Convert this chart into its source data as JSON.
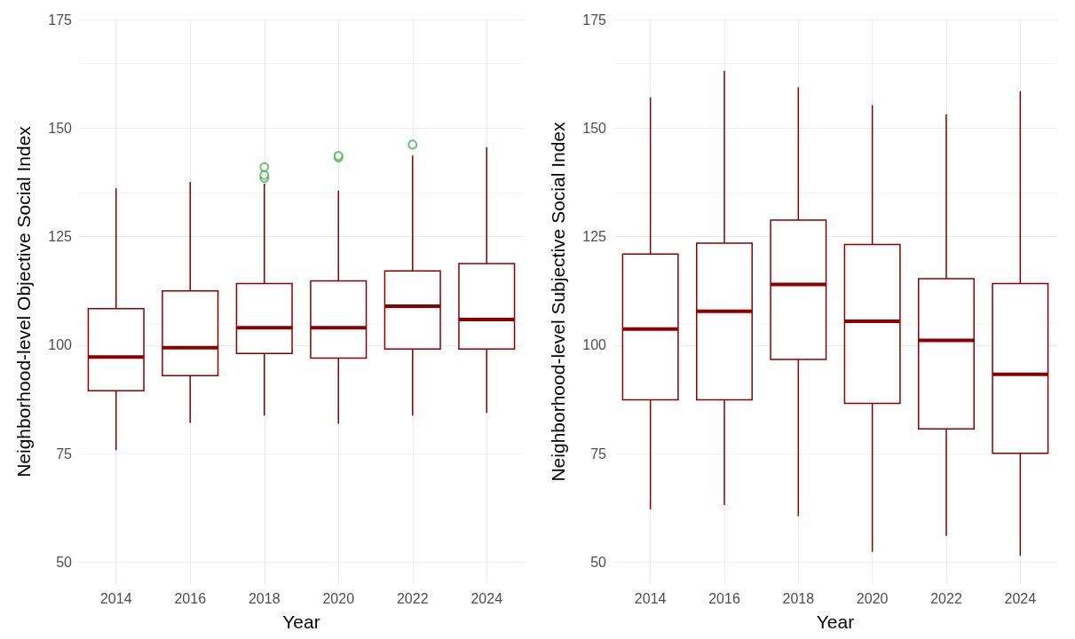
{
  "chart_data": [
    {
      "type": "box",
      "xlabel": "Year",
      "ylabel": "Neighborhood-level Objective Social Index",
      "categories": [
        "2014",
        "2016",
        "2018",
        "2020",
        "2022",
        "2024"
      ],
      "ylim": [
        45,
        175
      ],
      "yticks": [
        50,
        75,
        100,
        125,
        150,
        175
      ],
      "grid": true,
      "series": [
        {
          "color": "#8b0000",
          "boxes": [
            {
              "low": 75.8,
              "q1": 89.5,
              "median": 97.3,
              "q3": 108.4,
              "high": 136.1
            },
            {
              "low": 82.1,
              "q1": 93.0,
              "median": 99.4,
              "q3": 112.5,
              "high": 137.6
            },
            {
              "low": 83.8,
              "q1": 98.1,
              "median": 104.0,
              "q3": 114.2,
              "high": 137.2,
              "outliers": [
                138.5,
                139.2,
                141.0
              ]
            },
            {
              "low": 81.9,
              "q1": 97.0,
              "median": 104.0,
              "q3": 114.8,
              "high": 135.6,
              "outliers": [
                143.2,
                143.6
              ]
            },
            {
              "low": 83.8,
              "q1": 99.1,
              "median": 109.0,
              "q3": 117.1,
              "high": 143.7,
              "outliers": [
                146.2
              ]
            },
            {
              "low": 84.4,
              "q1": 99.1,
              "median": 105.9,
              "q3": 118.8,
              "high": 145.6
            }
          ]
        }
      ]
    },
    {
      "type": "box",
      "xlabel": "Year",
      "ylabel": "Neighborhood-level Subjective Social Index",
      "categories": [
        "2014",
        "2016",
        "2018",
        "2020",
        "2022",
        "2024"
      ],
      "ylim": [
        45,
        175
      ],
      "yticks": [
        50,
        75,
        100,
        125,
        150,
        175
      ],
      "grid": true,
      "series": [
        {
          "color": "#8b0000",
          "boxes": [
            {
              "low": 62.2,
              "q1": 87.4,
              "median": 103.7,
              "q3": 121.0,
              "high": 157.1
            },
            {
              "low": 63.2,
              "q1": 87.4,
              "median": 107.8,
              "q3": 123.5,
              "high": 163.2
            },
            {
              "low": 60.6,
              "q1": 96.7,
              "median": 114.0,
              "q3": 128.8,
              "high": 159.4
            },
            {
              "low": 52.4,
              "q1": 86.6,
              "median": 105.5,
              "q3": 123.2,
              "high": 155.3
            },
            {
              "low": 56.1,
              "q1": 80.7,
              "median": 101.1,
              "q3": 115.3,
              "high": 153.2
            },
            {
              "low": 51.5,
              "q1": 75.1,
              "median": 93.3,
              "q3": 114.2,
              "high": 158.5
            }
          ]
        }
      ]
    }
  ]
}
